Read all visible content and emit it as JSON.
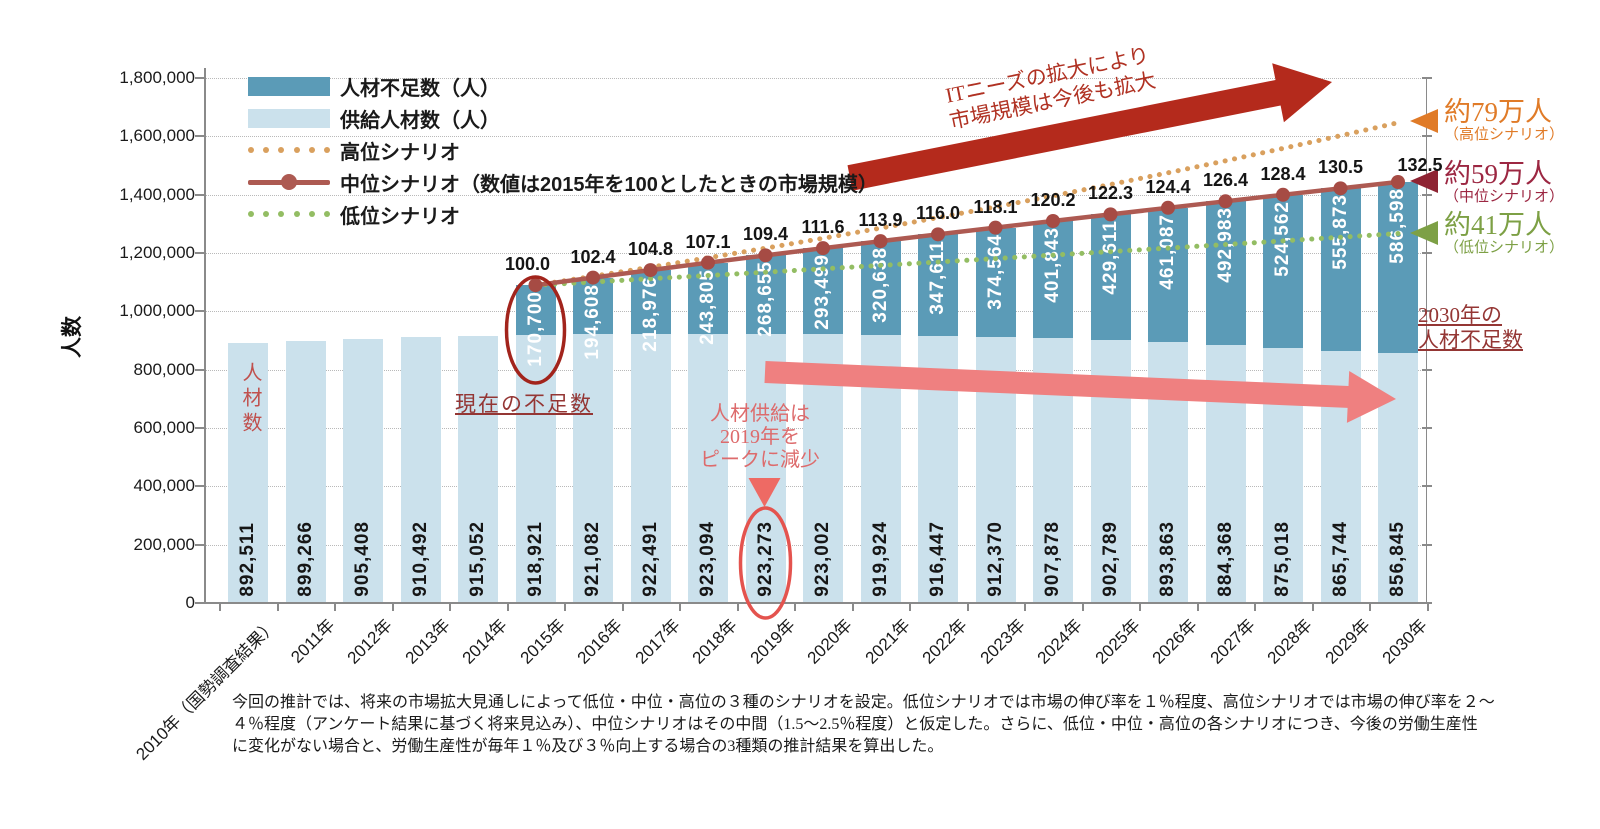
{
  "y_axis": {
    "title": "人数",
    "max": 1800000,
    "tick_step": 200000,
    "tick_labels": [
      "0",
      "200,000",
      "400,000",
      "600,000",
      "800,000",
      "1,000,000",
      "1,200,000",
      "1,400,000",
      "1,600,000",
      "1,800,000"
    ]
  },
  "x_axis": {
    "categories": [
      "2010年（国勢調査結果）",
      "2011年",
      "2012年",
      "2013年",
      "2014年",
      "2015年",
      "2016年",
      "2017年",
      "2018年",
      "2019年",
      "2020年",
      "2021年",
      "2022年",
      "2023年",
      "2024年",
      "2025年",
      "2026年",
      "2027年",
      "2028年",
      "2029年",
      "2030年"
    ]
  },
  "legend": {
    "items": [
      {
        "label": "人材不足数（人）",
        "swatch": "bar",
        "color": "#5b9bb7"
      },
      {
        "label": "供給人材数（人）",
        "swatch": "bar",
        "color": "#cbe1ec"
      },
      {
        "label": "高位シナリオ",
        "swatch": "dots",
        "color": "#d9a05e"
      },
      {
        "label": "中位シナリオ（数値は2015年を100としたときの市場規模）",
        "swatch": "line-marker",
        "color": "#ad5a52"
      },
      {
        "label": "低位シナリオ",
        "swatch": "dots",
        "color": "#93bd63"
      }
    ]
  },
  "chart_data": {
    "type": "bar",
    "title": "",
    "xlabel": "",
    "ylabel": "人数",
    "ylim": [
      0,
      1800000
    ],
    "grid": true,
    "categories": [
      "2010年（国勢調査結果）",
      "2011年",
      "2012年",
      "2013年",
      "2014年",
      "2015年",
      "2016年",
      "2017年",
      "2018年",
      "2019年",
      "2020年",
      "2021年",
      "2022年",
      "2023年",
      "2024年",
      "2025年",
      "2026年",
      "2027年",
      "2028年",
      "2029年",
      "2030年"
    ],
    "series": [
      {
        "name": "供給人材数（人）",
        "type": "bar",
        "stack_order": 0,
        "color": "#cbe1ec",
        "values": [
          892511,
          899266,
          905408,
          910492,
          915052,
          918921,
          921082,
          922491,
          923094,
          923273,
          923002,
          919924,
          916447,
          912370,
          907878,
          902789,
          893863,
          884368,
          875018,
          865744,
          856845
        ]
      },
      {
        "name": "人材不足数（人）",
        "type": "bar",
        "stack_order": 1,
        "color": "#5b9bb7",
        "values": [
          0,
          0,
          0,
          0,
          0,
          170700,
          194608,
          218976,
          243805,
          268655,
          293499,
          320638,
          347611,
          374564,
          401843,
          429611,
          461087,
          492983,
          524562,
          555873,
          586598
        ]
      },
      {
        "name": "中位シナリオ",
        "type": "line",
        "color": "#ad5a52",
        "marker_color": "#a64b44",
        "note": "数値は2015年を100としたときの市場規模",
        "start_category": "2015年",
        "index_labels": [
          "100.0",
          "102.4",
          "104.8",
          "107.1",
          "109.4",
          "111.6",
          "113.9",
          "116.0",
          "118.1",
          "120.2",
          "122.3",
          "124.4",
          "126.4",
          "128.4",
          "130.5",
          "132.5"
        ]
      },
      {
        "name": "高位シナリオ",
        "type": "dotted-line",
        "color": "#d9a05e",
        "start_category": "2015年",
        "end_label": "約79万人",
        "end_value_people_est": 1646845
      },
      {
        "name": "低位シナリオ",
        "type": "dotted-line",
        "color": "#93bd63",
        "start_category": "2015年",
        "end_label": "約41万人",
        "end_value_people_est": 1266845
      }
    ]
  },
  "annotations": {
    "y_title": "人数",
    "first_bar_vertical": "人材数",
    "current_shortage": "現在の不足数",
    "supply_peak_lines": [
      "人材供給は",
      "2019年を",
      "ピークに減少"
    ],
    "it_expand_lines": [
      "ITニーズの拡大により",
      "市場規模は今後も拡大"
    ],
    "scenario_results": [
      {
        "main": "約79万人",
        "sub": "（高位シナリオ）",
        "color": "#e07b28"
      },
      {
        "main": "約59万人",
        "sub": "（中位シナリオ）",
        "color": "#9c2742"
      },
      {
        "main": "約41万人",
        "sub": "（低位シナリオ）",
        "color": "#7da045"
      }
    ],
    "shortage_2030_lines": [
      "2030年の",
      "人材不足数"
    ]
  },
  "footnote_lines": [
    "今回の推計では、将来の市場拡大見通しによって低位・中位・高位の３種のシナリオを設定。低位シナリオでは市場の伸び率を１％程度、高位シナリオでは市場の伸び率を２～",
    "４％程度（アンケート結果に基づく将来見込み）、中位シナリオはその中間（1.5～2.5％程度）と仮定した。さらに、低位・中位・高位の各シナリオにつき、今後の労働生産性",
    "に変化がない場合と、労働生産性が毎年１％及び３％向上する場合の3種類の推計結果を算出した。"
  ]
}
